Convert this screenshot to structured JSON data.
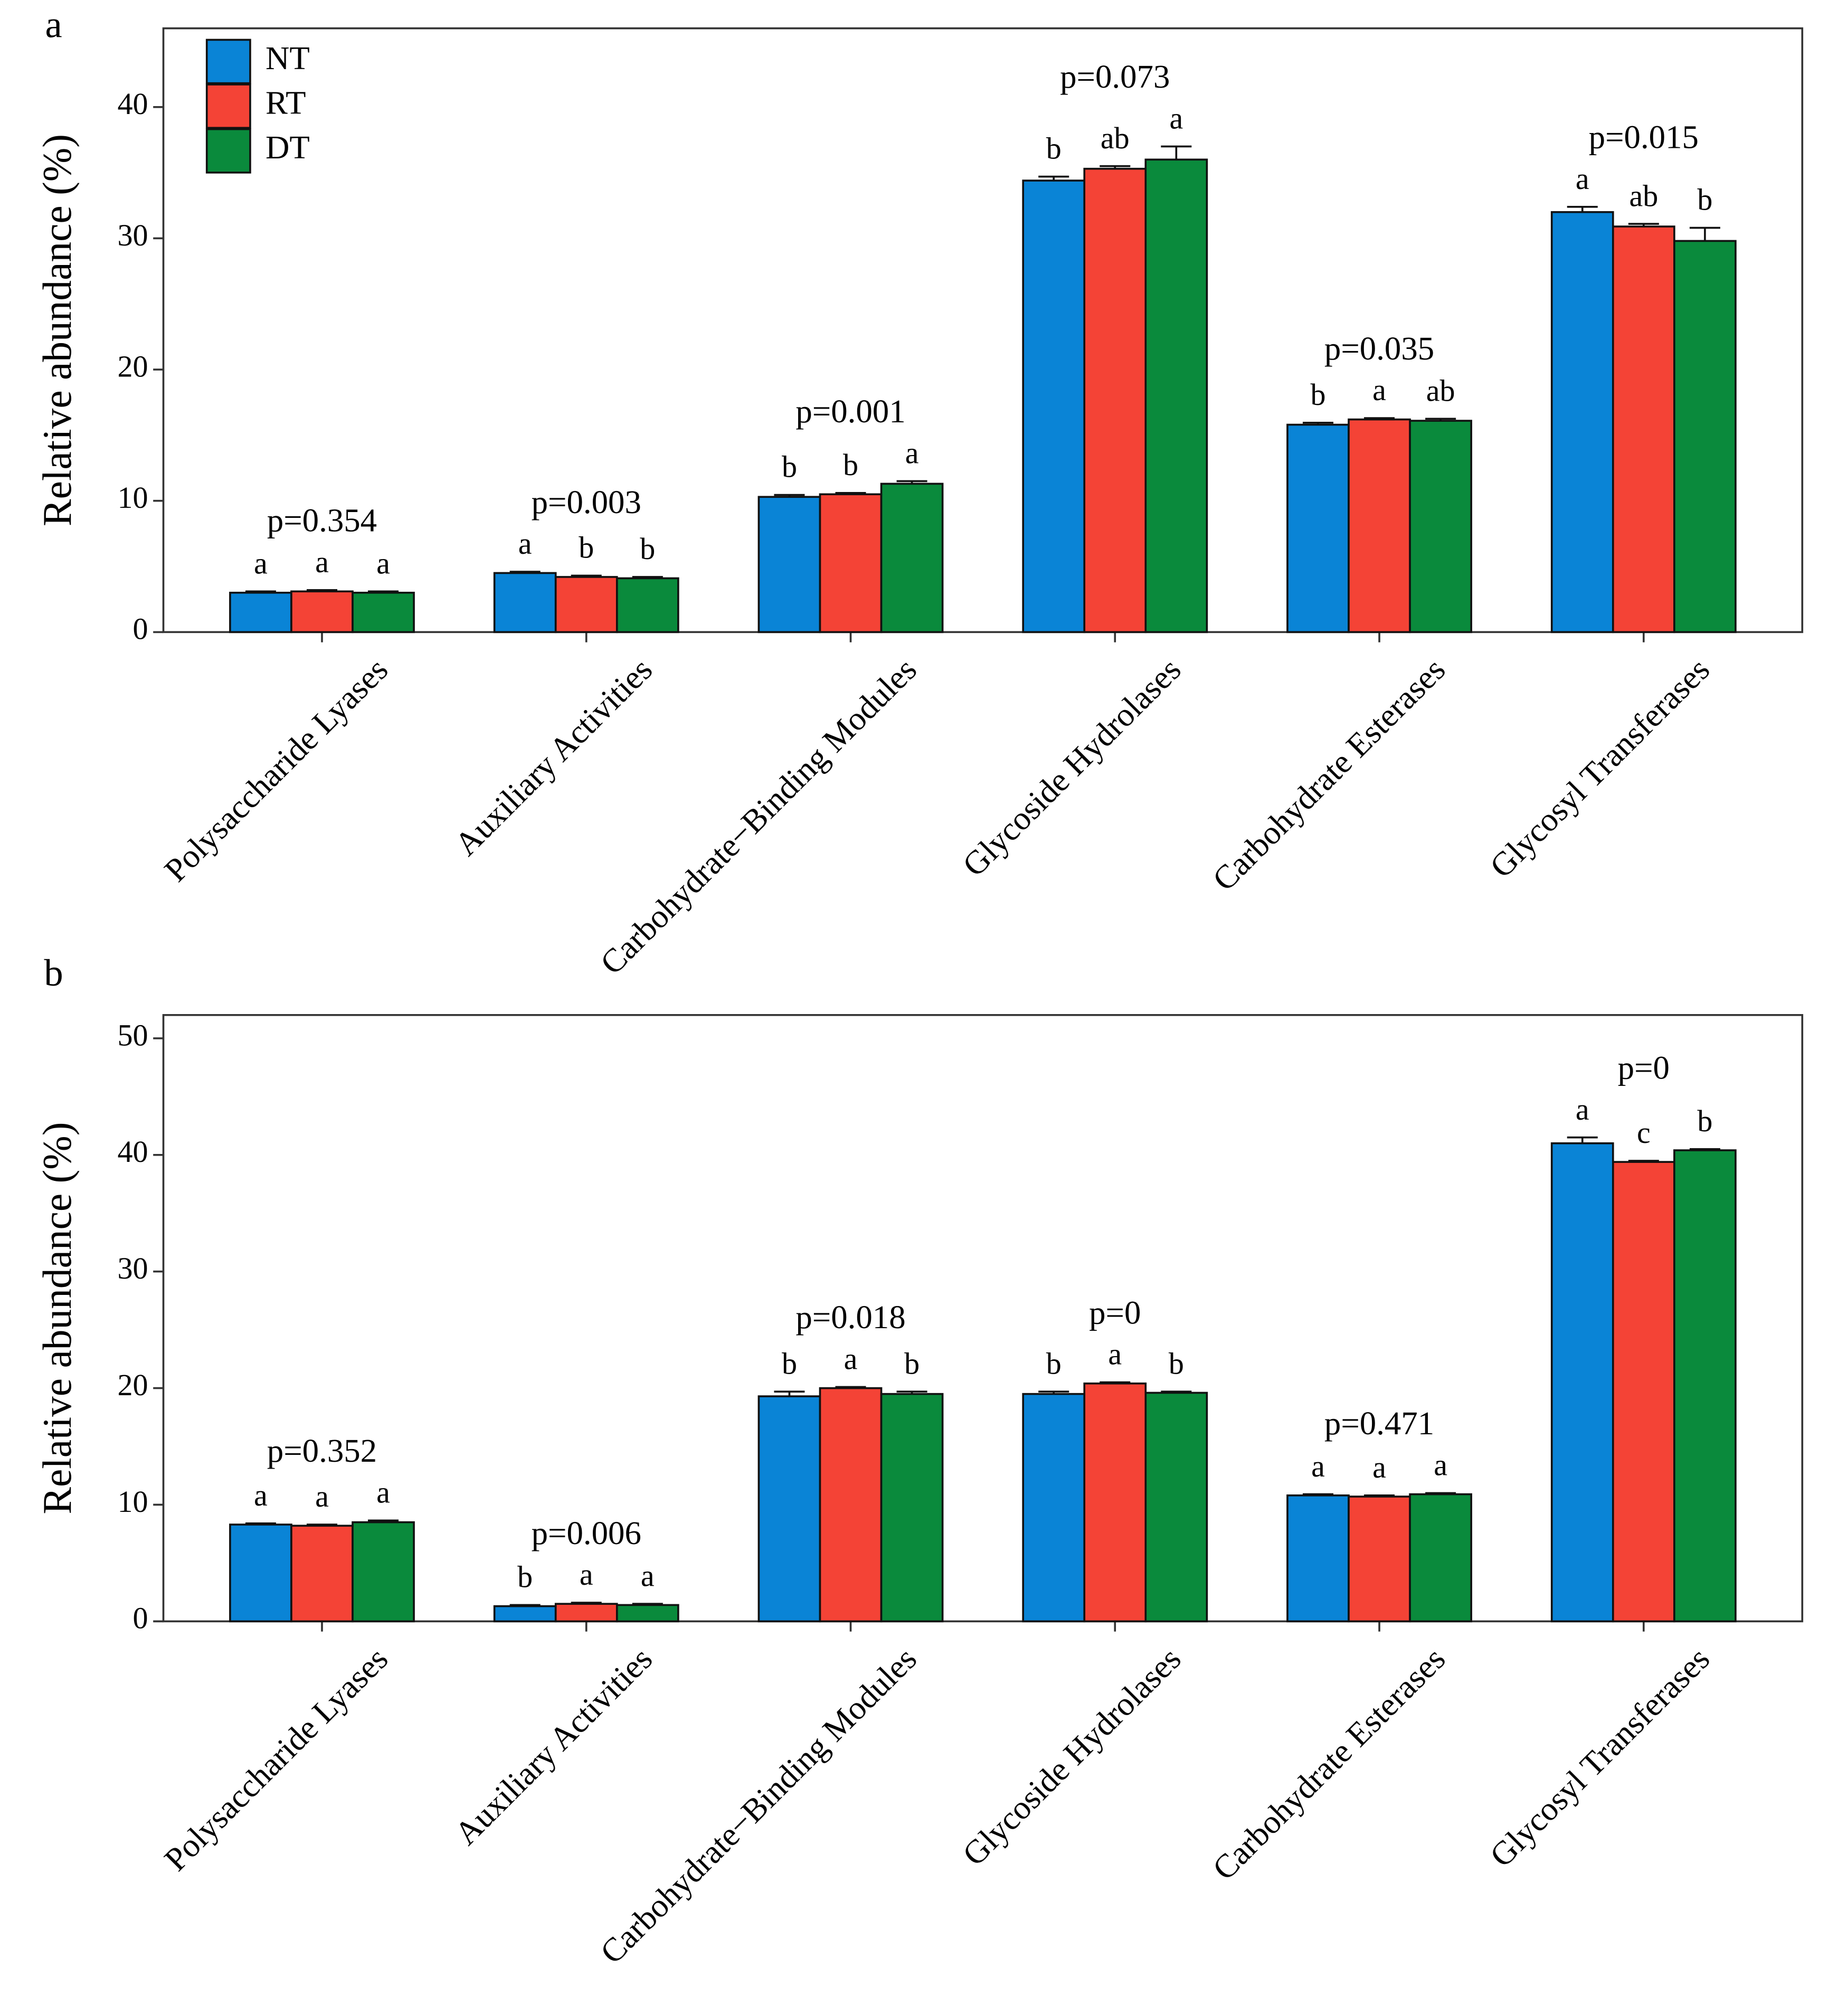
{
  "chart_data": [
    {
      "type": "bar",
      "panel": "a",
      "ylabel": "Relative abundance (%)",
      "categories": [
        "Polysaccharide Lyases",
        "Auxiliary Activities",
        "Carbohydrate−Binding Modules",
        "Glycoside Hydrolases",
        "Carbohydrate Esterases",
        "Glycosyl Transferases"
      ],
      "p_values": [
        "p=0.354",
        "p=0.003",
        "p=0.001",
        "p=0.073",
        "p=0.035",
        "p=0.015"
      ],
      "series": [
        {
          "name": "NT",
          "color": "#0a84d6",
          "values": [
            3.0,
            4.5,
            10.3,
            34.4,
            15.8,
            32.0
          ],
          "errors": [
            0.1,
            0.1,
            0.15,
            0.3,
            0.15,
            0.4
          ],
          "letters": [
            "a",
            "a",
            "b",
            "b",
            "b",
            "a"
          ]
        },
        {
          "name": "RT",
          "color": "#f44336",
          "values": [
            3.1,
            4.2,
            10.5,
            35.3,
            16.2,
            30.9
          ],
          "errors": [
            0.1,
            0.1,
            0.1,
            0.2,
            0.1,
            0.2
          ],
          "letters": [
            "a",
            "b",
            "b",
            "ab",
            "a",
            "ab"
          ]
        },
        {
          "name": "DT",
          "color": "#0a8a3c",
          "values": [
            3.0,
            4.1,
            11.3,
            36.0,
            16.1,
            29.8
          ],
          "errors": [
            0.1,
            0.1,
            0.2,
            1.0,
            0.15,
            1.0
          ],
          "letters": [
            "a",
            "b",
            "a",
            "a",
            "ab",
            "b"
          ]
        }
      ],
      "ylim": [
        0,
        46
      ],
      "yticks": [
        0,
        10,
        20,
        30,
        40
      ],
      "legend": "upper left"
    },
    {
      "type": "bar",
      "panel": "b",
      "ylabel": "Relative abundance (%)",
      "categories": [
        "Polysaccharide Lyases",
        "Auxiliary Activities",
        "Carbohydrate−Binding Modules",
        "Glycoside Hydrolases",
        "Carbohydrate Esterases",
        "Glycosyl Transferases"
      ],
      "p_values": [
        "p=0.352",
        "p=0.006",
        "p=0.018",
        "p=0",
        "p=0.471",
        "p=0"
      ],
      "series": [
        {
          "color": "#0a84d6",
          "values": [
            8.3,
            1.3,
            19.3,
            19.5,
            10.8,
            41.0
          ],
          "errors": [
            0.1,
            0.1,
            0.4,
            0.2,
            0.1,
            0.5
          ],
          "letters": [
            "a",
            "b",
            "b",
            "b",
            "a",
            "a"
          ]
        },
        {
          "color": "#f44336",
          "values": [
            8.2,
            1.5,
            20.0,
            20.4,
            10.7,
            39.4
          ],
          "errors": [
            0.1,
            0.1,
            0.1,
            0.1,
            0.1,
            0.1
          ],
          "letters": [
            "a",
            "a",
            "a",
            "a",
            "a",
            "c"
          ]
        },
        {
          "color": "#0a8a3c",
          "values": [
            8.5,
            1.4,
            19.5,
            19.6,
            10.9,
            40.4
          ],
          "errors": [
            0.15,
            0.1,
            0.2,
            0.1,
            0.1,
            0.1
          ],
          "letters": [
            "a",
            "a",
            "b",
            "b",
            "a",
            "b"
          ]
        }
      ],
      "ylim": [
        0,
        52
      ],
      "yticks": [
        0,
        10,
        20,
        30,
        40,
        50
      ]
    }
  ]
}
